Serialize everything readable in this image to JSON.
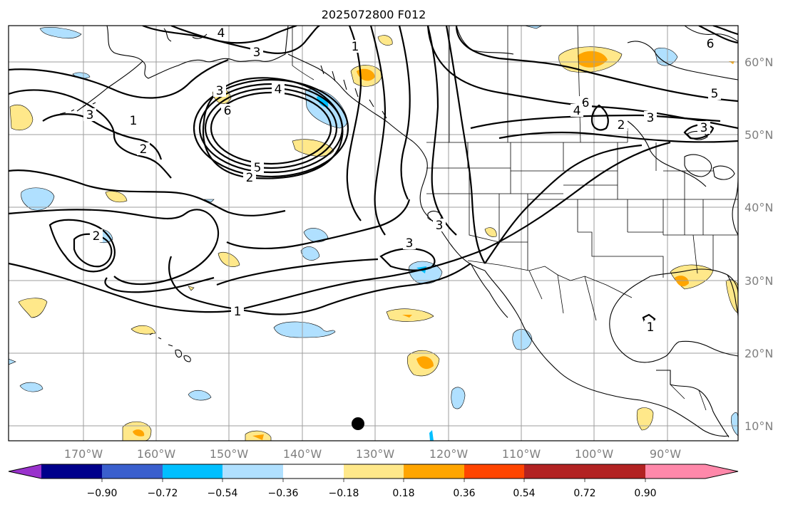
{
  "title": "2025072800 F012",
  "longitude_labels": [
    "170°W",
    "160°W",
    "150°W",
    "140°W",
    "130°W",
    "120°W",
    "110°W",
    "100°W",
    "90°W"
  ],
  "latitude_labels": [
    "60°N",
    "50°N",
    "40°N",
    "30°N",
    "20°N",
    "10°N"
  ],
  "colorbar": {
    "ticks": [
      "−0.90",
      "−0.72",
      "−0.54",
      "−0.36",
      "−0.18",
      "0.18",
      "0.36",
      "0.54",
      "0.72",
      "0.90"
    ],
    "colors": [
      "#9932cc",
      "#00008b",
      "#3a5fcd",
      "#00bfff",
      "#b0e0ff",
      "#ffffff",
      "#ffe88a",
      "#ffa500",
      "#ff4500",
      "#b22222",
      "#ff88aa"
    ]
  },
  "contour_labels": [
    {
      "id": "c4a",
      "text": "4"
    },
    {
      "id": "c3a",
      "text": "3"
    },
    {
      "id": "c1a",
      "text": "1"
    },
    {
      "id": "c3b",
      "text": "3"
    },
    {
      "id": "c4b",
      "text": "4"
    },
    {
      "id": "c6a",
      "text": "6"
    },
    {
      "id": "c1b",
      "text": "1"
    },
    {
      "id": "c2a",
      "text": "2"
    },
    {
      "id": "c5a",
      "text": "5"
    },
    {
      "id": "c2b",
      "text": "2"
    },
    {
      "id": "c2c",
      "text": "2"
    },
    {
      "id": "c3c",
      "text": "3"
    },
    {
      "id": "c3d",
      "text": "3"
    },
    {
      "id": "c1c",
      "text": "1"
    },
    {
      "id": "c6b",
      "text": "6"
    },
    {
      "id": "c4c",
      "text": "4"
    },
    {
      "id": "c2d",
      "text": "2"
    },
    {
      "id": "c3e",
      "text": "3"
    },
    {
      "id": "c3f",
      "text": "3"
    },
    {
      "id": "c5b",
      "text": "5"
    },
    {
      "id": "c1d",
      "text": "1"
    },
    {
      "id": "c6c",
      "text": "6"
    },
    {
      "id": "c3g",
      "text": "3"
    }
  ]
}
